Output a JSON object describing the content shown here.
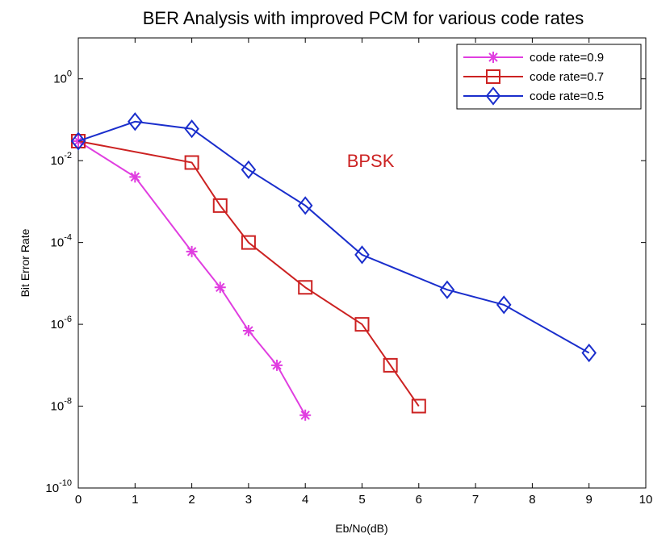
{
  "chart_data": {
    "type": "line",
    "title": "BER Analysis with improved PCM for various code rates",
    "x_label": "Eb/No(dB)",
    "y_label": "Bit Error Rate",
    "annotation": "BPSK",
    "log_y": true,
    "grid": false,
    "legend": "upper right",
    "xlim": [
      0,
      10
    ],
    "xticks": [
      0,
      1,
      2,
      3,
      4,
      5,
      6,
      7,
      8,
      9,
      10
    ],
    "ylim": [
      1e-10,
      10
    ],
    "yticks": [
      {
        "value": 1e-10,
        "label": "10^-10"
      },
      {
        "value": 1e-08,
        "label": "10^-8"
      },
      {
        "value": 1e-06,
        "label": "10^-6"
      },
      {
        "value": 0.0001,
        "label": "10^-4"
      },
      {
        "value": 0.01,
        "label": "10^-2"
      },
      {
        "value": 1,
        "label": "10^0"
      }
    ],
    "series": [
      {
        "name": "code rate=0.9",
        "color": "#e03ee0",
        "marker": "star",
        "x": [
          0,
          1,
          2,
          2.5,
          3,
          3.5,
          4
        ],
        "values": [
          0.03,
          0.004,
          6e-05,
          8e-06,
          7e-07,
          1e-07,
          6e-09
        ]
      },
      {
        "name": "code rate=0.7",
        "color": "#cc2222",
        "marker": "square",
        "x": [
          0,
          2,
          2.5,
          3,
          4,
          5,
          5.5,
          6
        ],
        "values": [
          0.03,
          0.009,
          0.0008,
          0.0001,
          8e-06,
          1e-06,
          1e-07,
          1e-08
        ]
      },
      {
        "name": "code rate=0.5",
        "color": "#1a2ecc",
        "marker": "diamond",
        "x": [
          0,
          1,
          2,
          3,
          4,
          5,
          6.5,
          7.5,
          9
        ],
        "values": [
          0.03,
          0.09,
          0.06,
          0.006,
          0.0008,
          5e-05,
          7e-06,
          3e-06,
          2e-07
        ]
      }
    ]
  }
}
